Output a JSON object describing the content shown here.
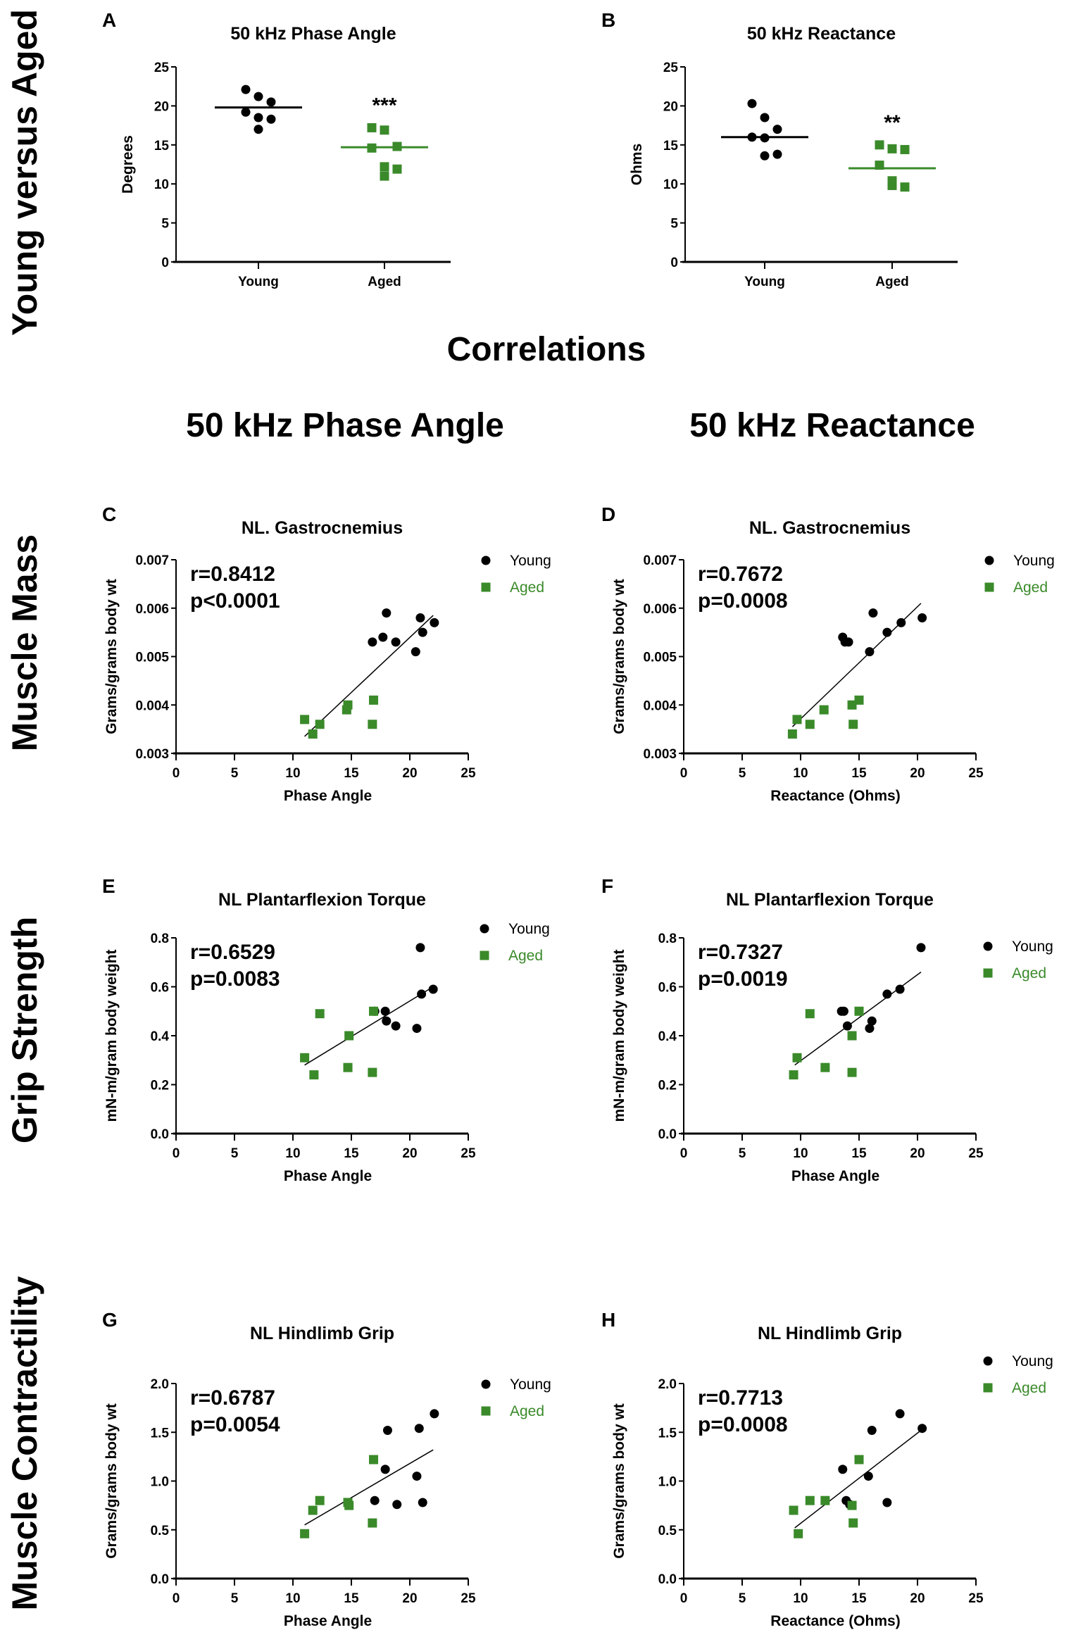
{
  "row_labels": [
    "Young versus Aged",
    "Muscle Mass",
    "Grip Strength",
    "Muscle Contractility"
  ],
  "section_title": "Correlations",
  "column_titles": [
    "50 kHz Phase Angle",
    "50 kHz Reactance"
  ],
  "colors": {
    "young": "#000000",
    "aged": "#3a8a2a"
  },
  "chart_data": [
    {
      "panel": "A",
      "type": "scatter",
      "title": "50 kHz Phase Angle",
      "ylabel": "Degrees",
      "xlabel": "",
      "categories": [
        "Young",
        "Aged"
      ],
      "ylim": [
        0,
        25
      ],
      "yticks": [
        "0",
        "5",
        "10",
        "15",
        "20",
        "25"
      ],
      "series": [
        {
          "values": [
            22.1,
            21.2,
            20.5,
            19.2,
            18.5,
            18.3,
            17.0
          ],
          "center": 19.8,
          "marker": "circle"
        },
        {
          "values": [
            17.2,
            16.9,
            14.8,
            14.6,
            12.2,
            11.9,
            11.0
          ],
          "center": 14.7,
          "marker": "square",
          "annotation": "***"
        }
      ]
    },
    {
      "panel": "B",
      "type": "scatter",
      "title": "50 kHz Reactance",
      "ylabel": "Ohms",
      "xlabel": "",
      "categories": [
        "Young",
        "Aged"
      ],
      "ylim": [
        0,
        25
      ],
      "yticks": [
        "0",
        "5",
        "10",
        "15",
        "20",
        "25"
      ],
      "series": [
        {
          "values": [
            20.3,
            18.5,
            17.0,
            16.0,
            15.9,
            13.8,
            13.6
          ],
          "center": 16.0,
          "marker": "circle"
        },
        {
          "values": [
            15.0,
            14.5,
            14.4,
            12.4,
            10.4,
            9.6,
            9.8
          ],
          "center": 12.0,
          "marker": "square",
          "annotation": "**"
        }
      ]
    },
    {
      "panel": "C",
      "type": "scatter",
      "title": "NL. Gastrocnemius",
      "xlabel": "Phase Angle",
      "ylabel": "Grams/grams body wt",
      "xlim": [
        0,
        25
      ],
      "ylim": [
        0.003,
        0.007
      ],
      "xticks": [
        "0",
        "5",
        "10",
        "15",
        "20",
        "25"
      ],
      "yticks": [
        "0.003",
        "0.004",
        "0.005",
        "0.006",
        "0.007"
      ],
      "stats": [
        "r=0.8412",
        "p<0.0001"
      ],
      "series": [
        {
          "name": "Young",
          "marker": "circle",
          "points": [
            [
              16.8,
              0.0053
            ],
            [
              17.7,
              0.0054
            ],
            [
              18.0,
              0.0059
            ],
            [
              18.8,
              0.0053
            ],
            [
              20.5,
              0.0051
            ],
            [
              20.9,
              0.0058
            ],
            [
              21.1,
              0.0055
            ],
            [
              22.1,
              0.0057
            ]
          ]
        },
        {
          "name": "Aged",
          "marker": "square",
          "points": [
            [
              11.0,
              0.0037
            ],
            [
              11.7,
              0.0034
            ],
            [
              12.3,
              0.0036
            ],
            [
              14.6,
              0.0039
            ],
            [
              14.7,
              0.004
            ],
            [
              16.8,
              0.0036
            ],
            [
              16.9,
              0.0041
            ]
          ]
        }
      ],
      "fit": [
        [
          11.0,
          0.00335
        ],
        [
          22.0,
          0.00585
        ]
      ]
    },
    {
      "panel": "D",
      "type": "scatter",
      "title": "NL. Gastrocnemius",
      "xlabel": "Reactance (Ohms)",
      "ylabel": "Grams/grams body wt",
      "xlim": [
        0,
        25
      ],
      "ylim": [
        0.003,
        0.007
      ],
      "xticks": [
        "0",
        "5",
        "10",
        "15",
        "20",
        "25"
      ],
      "yticks": [
        "0.003",
        "0.004",
        "0.005",
        "0.006",
        "0.007"
      ],
      "stats": [
        "r=0.7672",
        "p=0.0008"
      ],
      "series": [
        {
          "name": "Young",
          "marker": "circle",
          "points": [
            [
              13.6,
              0.0054
            ],
            [
              13.8,
              0.0053
            ],
            [
              14.1,
              0.0053
            ],
            [
              15.9,
              0.0051
            ],
            [
              16.2,
              0.0059
            ],
            [
              17.4,
              0.0055
            ],
            [
              18.6,
              0.0057
            ],
            [
              20.4,
              0.0058
            ]
          ]
        },
        {
          "name": "Aged",
          "marker": "square",
          "points": [
            [
              9.3,
              0.0034
            ],
            [
              9.7,
              0.0037
            ],
            [
              10.8,
              0.0036
            ],
            [
              12.0,
              0.0039
            ],
            [
              14.4,
              0.004
            ],
            [
              14.5,
              0.0036
            ],
            [
              15.0,
              0.0041
            ]
          ]
        }
      ],
      "fit": [
        [
          9.3,
          0.00355
        ],
        [
          20.3,
          0.0061
        ]
      ]
    },
    {
      "panel": "E",
      "type": "scatter",
      "title": "NL Plantarflexion Torque",
      "xlabel": "Phase Angle",
      "ylabel": "mN-m/gram body weight",
      "xlim": [
        0,
        25
      ],
      "ylim": [
        0,
        0.8
      ],
      "xticks": [
        "0",
        "5",
        "10",
        "15",
        "20",
        "25"
      ],
      "yticks": [
        "0.0",
        "0.2",
        "0.4",
        "0.6",
        "0.8"
      ],
      "stats": [
        "r=0.6529",
        "p=0.0083"
      ],
      "series": [
        {
          "name": "Young",
          "marker": "circle",
          "points": [
            [
              17.0,
              0.5
            ],
            [
              17.9,
              0.5
            ],
            [
              18.0,
              0.46
            ],
            [
              18.8,
              0.44
            ],
            [
              20.6,
              0.43
            ],
            [
              20.9,
              0.76
            ],
            [
              21.0,
              0.57
            ],
            [
              22.0,
              0.59
            ]
          ]
        },
        {
          "name": "Aged",
          "marker": "square",
          "points": [
            [
              11.0,
              0.31
            ],
            [
              11.8,
              0.24
            ],
            [
              12.3,
              0.49
            ],
            [
              14.7,
              0.27
            ],
            [
              14.8,
              0.4
            ],
            [
              16.8,
              0.25
            ],
            [
              16.9,
              0.5
            ]
          ]
        }
      ],
      "fit": [
        [
          11.0,
          0.28
        ],
        [
          22.0,
          0.6
        ]
      ]
    },
    {
      "panel": "F",
      "type": "scatter",
      "title": "NL Plantarflexion Torque",
      "xlabel": "Phase Angle",
      "ylabel": "mN-m/gram body weight",
      "xlim": [
        0,
        25
      ],
      "ylim": [
        0,
        0.8
      ],
      "xticks": [
        "0",
        "5",
        "10",
        "15",
        "20",
        "25"
      ],
      "yticks": [
        "0.0",
        "0.2",
        "0.4",
        "0.6",
        "0.8"
      ],
      "stats": [
        "r=0.7327",
        "p=0.0019"
      ],
      "series": [
        {
          "name": "Young",
          "marker": "circle",
          "points": [
            [
              13.5,
              0.5
            ],
            [
              13.7,
              0.5
            ],
            [
              14.0,
              0.44
            ],
            [
              15.9,
              0.43
            ],
            [
              16.1,
              0.46
            ],
            [
              17.4,
              0.57
            ],
            [
              18.5,
              0.59
            ],
            [
              20.3,
              0.76
            ]
          ]
        },
        {
          "name": "Aged",
          "marker": "square",
          "points": [
            [
              9.4,
              0.24
            ],
            [
              9.7,
              0.31
            ],
            [
              10.8,
              0.49
            ],
            [
              12.1,
              0.27
            ],
            [
              14.4,
              0.4
            ],
            [
              14.4,
              0.25
            ],
            [
              15.0,
              0.5
            ]
          ]
        }
      ],
      "fit": [
        [
          9.5,
          0.28
        ],
        [
          20.3,
          0.66
        ]
      ]
    },
    {
      "panel": "G",
      "type": "scatter",
      "title": "NL Hindlimb Grip",
      "xlabel": "Phase Angle",
      "ylabel": "Grams/grams body wt",
      "xlim": [
        0,
        25
      ],
      "ylim": [
        0,
        2.0
      ],
      "xticks": [
        "0",
        "5",
        "10",
        "15",
        "20",
        "25"
      ],
      "yticks": [
        "0.0",
        "0.5",
        "1.0",
        "1.5",
        "2.0"
      ],
      "stats": [
        "r=0.6787",
        "p=0.0054"
      ],
      "series": [
        {
          "name": "Young",
          "marker": "circle",
          "points": [
            [
              17.0,
              0.8
            ],
            [
              17.9,
              1.12
            ],
            [
              18.1,
              1.52
            ],
            [
              18.9,
              0.76
            ],
            [
              20.6,
              1.05
            ],
            [
              20.8,
              1.54
            ],
            [
              21.1,
              0.78
            ],
            [
              22.1,
              1.69
            ]
          ]
        },
        {
          "name": "Aged",
          "marker": "square",
          "points": [
            [
              11.0,
              0.46
            ],
            [
              11.7,
              0.7
            ],
            [
              12.3,
              0.8
            ],
            [
              14.7,
              0.78
            ],
            [
              14.8,
              0.75
            ],
            [
              16.8,
              0.57
            ],
            [
              16.9,
              1.22
            ]
          ]
        }
      ],
      "fit": [
        [
          11.0,
          0.55
        ],
        [
          22.0,
          1.32
        ]
      ]
    },
    {
      "panel": "H",
      "type": "scatter",
      "title": "NL Hindlimb Grip",
      "xlabel": "Reactance (Ohms)",
      "ylabel": "Grams/grams body wt",
      "xlim": [
        0,
        25
      ],
      "ylim": [
        0,
        2.0
      ],
      "xticks": [
        "0",
        "5",
        "10",
        "15",
        "20",
        "25"
      ],
      "yticks": [
        "0.0",
        "0.5",
        "1.0",
        "1.5",
        "2.0"
      ],
      "stats": [
        "r=0.7713",
        "p=0.0008"
      ],
      "series": [
        {
          "name": "Young",
          "marker": "circle",
          "points": [
            [
              13.6,
              1.12
            ],
            [
              13.9,
              0.8
            ],
            [
              14.2,
              0.76
            ],
            [
              15.8,
              1.05
            ],
            [
              16.1,
              1.52
            ],
            [
              17.4,
              0.78
            ],
            [
              18.5,
              1.69
            ],
            [
              20.4,
              1.54
            ]
          ]
        },
        {
          "name": "Aged",
          "marker": "square",
          "points": [
            [
              9.4,
              0.7
            ],
            [
              9.8,
              0.46
            ],
            [
              10.8,
              0.8
            ],
            [
              12.1,
              0.8
            ],
            [
              14.4,
              0.75
            ],
            [
              14.5,
              0.57
            ],
            [
              15.0,
              1.22
            ]
          ]
        }
      ],
      "fit": [
        [
          9.5,
          0.52
        ],
        [
          20.3,
          1.52
        ]
      ]
    }
  ]
}
